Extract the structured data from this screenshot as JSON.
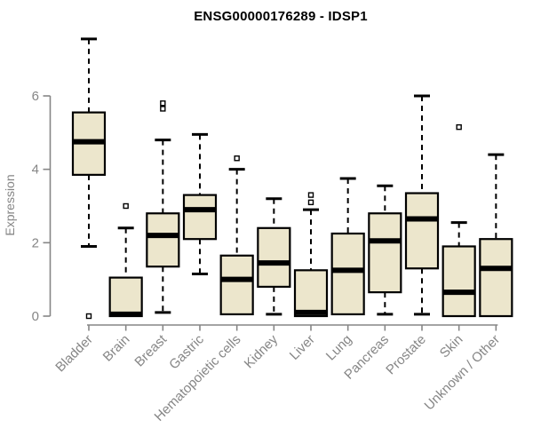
{
  "chart_data": {
    "type": "boxplot",
    "title": "ENSG00000176289 - IDSP1",
    "ylabel": "Expression",
    "xlabel": "",
    "yticks": [
      0,
      2,
      4,
      6
    ],
    "ylim": [
      -0.3,
      7.7
    ],
    "grid": false,
    "legend": "none",
    "categories": [
      "Bladder",
      "Brain",
      "Breast",
      "Gastric",
      "Hematopoietic cells",
      "Kidney",
      "Liver",
      "Lung",
      "Pancreas",
      "Prostate",
      "Skin",
      "Unknown / Other"
    ],
    "series": [
      {
        "name": "Bladder",
        "whislo": 1.9,
        "q1": 3.85,
        "med": 4.75,
        "q3": 5.55,
        "whishi": 7.55,
        "outliers": [
          0
        ]
      },
      {
        "name": "Brain",
        "whislo": 0,
        "q1": 0,
        "med": 0.05,
        "q3": 1.05,
        "whishi": 2.4,
        "outliers": [
          3.0
        ]
      },
      {
        "name": "Breast",
        "whislo": 0.1,
        "q1": 1.35,
        "med": 2.2,
        "q3": 2.8,
        "whishi": 4.8,
        "outliers": [
          5.65,
          5.8
        ]
      },
      {
        "name": "Gastric",
        "whislo": 1.15,
        "q1": 2.1,
        "med": 2.9,
        "q3": 3.3,
        "whishi": 4.95,
        "outliers": []
      },
      {
        "name": "Hematopoietic cells",
        "whislo": 0.05,
        "q1": 0.05,
        "med": 1.0,
        "q3": 1.65,
        "whishi": 4.0,
        "outliers": [
          4.3
        ]
      },
      {
        "name": "Kidney",
        "whislo": 0.05,
        "q1": 0.8,
        "med": 1.45,
        "q3": 2.4,
        "whishi": 3.2,
        "outliers": []
      },
      {
        "name": "Liver",
        "whislo": 0,
        "q1": 0,
        "med": 0.1,
        "q3": 1.25,
        "whishi": 2.9,
        "outliers": [
          3.1,
          3.3
        ]
      },
      {
        "name": "Lung",
        "whislo": 0.05,
        "q1": 0.05,
        "med": 1.25,
        "q3": 2.25,
        "whishi": 3.75,
        "outliers": []
      },
      {
        "name": "Pancreas",
        "whislo": 0.05,
        "q1": 0.65,
        "med": 2.05,
        "q3": 2.8,
        "whishi": 3.55,
        "outliers": []
      },
      {
        "name": "Prostate",
        "whislo": 0.05,
        "q1": 1.3,
        "med": 2.65,
        "q3": 3.35,
        "whishi": 6.0,
        "outliers": []
      },
      {
        "name": "Skin",
        "whislo": 0,
        "q1": 0,
        "med": 0.65,
        "q3": 1.9,
        "whishi": 2.55,
        "outliers": [
          5.15
        ]
      },
      {
        "name": "Unknown / Other",
        "whislo": 0,
        "q1": 0,
        "med": 1.3,
        "q3": 2.1,
        "whishi": 4.4,
        "outliers": []
      }
    ],
    "colors": {
      "box_fill": "#ECE6CC",
      "box_border": "#000000",
      "median": "#000000",
      "whisker": "#000000",
      "outlier": "#000000",
      "axis": "#868686",
      "tick_text": "#868686",
      "title_text": "#000000",
      "background": "#FFFFFF"
    }
  }
}
